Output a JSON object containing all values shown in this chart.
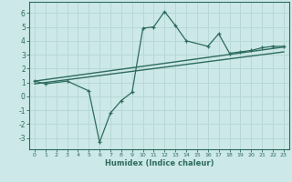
{
  "xlabel": "Humidex (Indice chaleur)",
  "bg_color": "#cce8e8",
  "line_color": "#2d6b5e",
  "grid_color": "#b8d8d8",
  "xlim": [
    -0.5,
    23.5
  ],
  "ylim": [
    -3.8,
    6.8
  ],
  "xticks": [
    0,
    1,
    2,
    3,
    4,
    5,
    6,
    7,
    8,
    9,
    10,
    11,
    12,
    13,
    14,
    15,
    16,
    17,
    18,
    19,
    20,
    21,
    22,
    23
  ],
  "yticks": [
    -3,
    -2,
    -1,
    0,
    1,
    2,
    3,
    4,
    5,
    6
  ],
  "main_x": [
    0,
    1,
    3,
    5,
    6,
    7,
    8,
    9,
    10,
    11,
    12,
    13,
    14,
    16,
    17,
    18,
    19,
    20,
    21,
    22,
    23
  ],
  "main_y": [
    1.1,
    0.9,
    1.1,
    0.4,
    -3.3,
    -1.2,
    -0.3,
    0.3,
    4.9,
    5.0,
    6.1,
    5.1,
    4.0,
    3.6,
    4.5,
    3.1,
    3.2,
    3.3,
    3.5,
    3.6,
    3.6
  ],
  "trend1_x": [
    0,
    23
  ],
  "trend1_y": [
    1.1,
    3.55
  ],
  "trend2_x": [
    0,
    23
  ],
  "trend2_y": [
    0.9,
    3.2
  ]
}
